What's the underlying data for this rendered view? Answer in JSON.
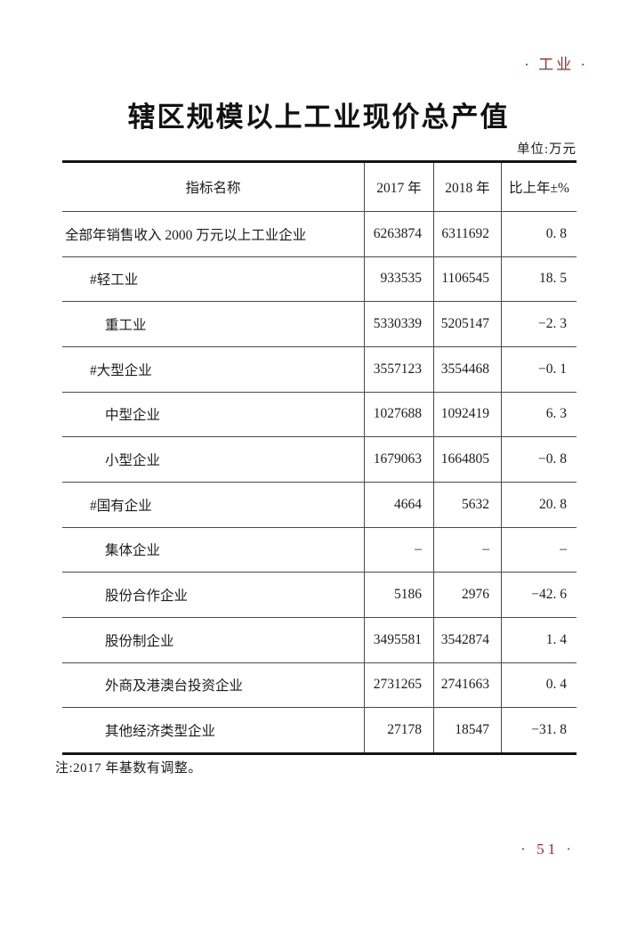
{
  "page": {
    "section_header": "· 工业 ·",
    "title": "辖区规模以上工业现价总产值",
    "unit_label": "单位:万元",
    "note": "注:2017 年基数有调整。",
    "page_number": "· 51 ·",
    "accent_color": "#b22222"
  },
  "chart_data": {
    "type": "table",
    "title": "辖区规模以上工业现价总产值",
    "unit": "万元",
    "columns": [
      "指标名称",
      "2017 年",
      "2018 年",
      "比上年±%"
    ],
    "rows": [
      {
        "indicator": "全部年销售收入 2000 万元以上工业企业",
        "y2017": "6263874",
        "y2018": "6311692",
        "pct": "0. 8"
      },
      {
        "indicator": "#轻工业",
        "y2017": "933535",
        "y2018": "1106545",
        "pct": "18. 5"
      },
      {
        "indicator": "重工业",
        "y2017": "5330339",
        "y2018": "5205147",
        "pct": "−2. 3"
      },
      {
        "indicator": "#大型企业",
        "y2017": "3557123",
        "y2018": "3554468",
        "pct": "−0. 1"
      },
      {
        "indicator": "中型企业",
        "y2017": "1027688",
        "y2018": "1092419",
        "pct": "6. 3"
      },
      {
        "indicator": "小型企业",
        "y2017": "1679063",
        "y2018": "1664805",
        "pct": "−0. 8"
      },
      {
        "indicator": "#国有企业",
        "y2017": "4664",
        "y2018": "5632",
        "pct": "20. 8"
      },
      {
        "indicator": "集体企业",
        "y2017": "–",
        "y2018": "–",
        "pct": "–"
      },
      {
        "indicator": "股份合作企业",
        "y2017": "5186",
        "y2018": "2976",
        "pct": "−42. 6"
      },
      {
        "indicator": "股份制企业",
        "y2017": "3495581",
        "y2018": "3542874",
        "pct": "1. 4"
      },
      {
        "indicator": "外商及港澳台投资企业",
        "y2017": "2731265",
        "y2018": "2741663",
        "pct": "0. 4"
      },
      {
        "indicator": "其他经济类型企业",
        "y2017": "27178",
        "y2018": "18547",
        "pct": "−31. 8"
      }
    ]
  }
}
